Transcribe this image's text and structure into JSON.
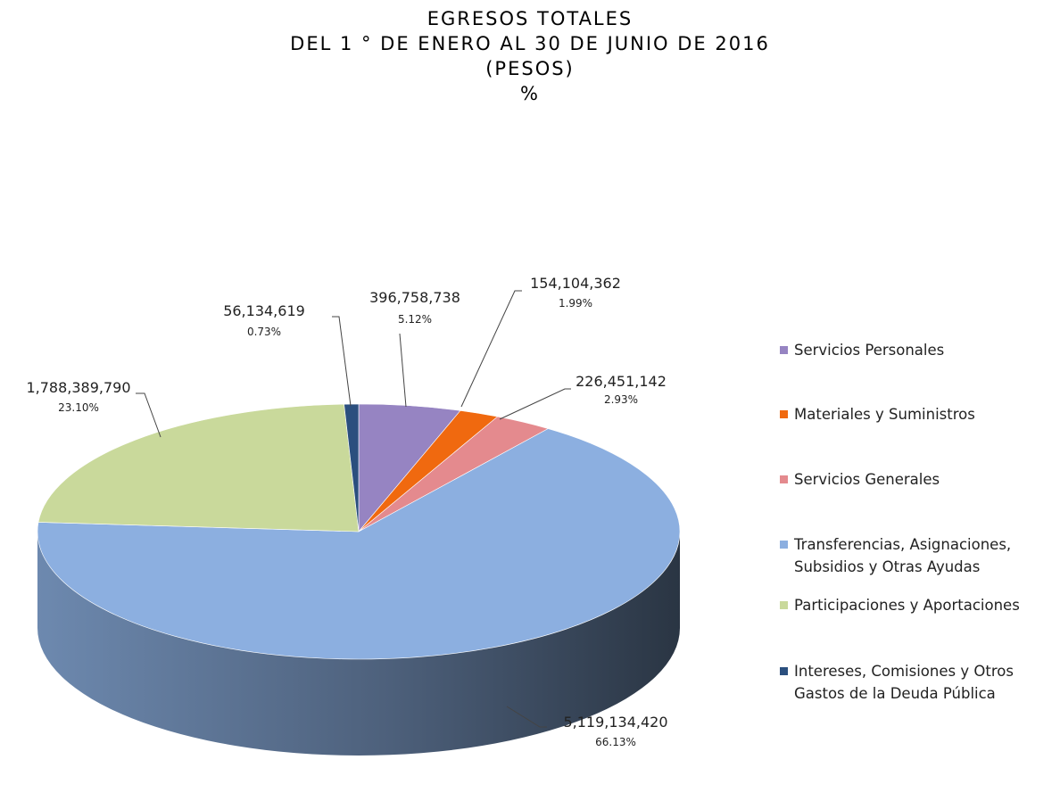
{
  "chart_data": {
    "type": "pie",
    "title": "EGRESOS TOTALES",
    "subtitle": [
      "DEL 1 ° DE ENERO AL 30 DE JUNIO DE 2016",
      "(PESOS)",
      "%"
    ],
    "categories": [
      "Servicios Personales",
      "Materiales y Suministros",
      "Servicios Generales",
      "Transferencias, Asignaciones, Subsidios y Otras Ayudas",
      "Participaciones y Aportaciones",
      "Intereses, Comisiones y Otros Gastos de la Deuda Pública"
    ],
    "values": [
      396758738,
      154104362,
      226451142,
      5119134420,
      1788389790,
      56134619
    ],
    "value_labels": [
      "396,758,738",
      "154,104,362",
      "226,451,142",
      "5,119,134,420",
      "1,788,389,790",
      "56,134,619"
    ],
    "percentages": [
      5.12,
      1.99,
      2.93,
      66.13,
      23.1,
      0.73
    ],
    "percentage_labels": [
      "5.12%",
      "1.99%",
      "2.93%",
      "66.13%",
      "23.10%",
      "0.73%"
    ],
    "colors": [
      "#9684c2",
      "#f0690f",
      "#e48a8e",
      "#8cafe0",
      "#c9d99b",
      "#2b4f7e"
    ],
    "legend": "right"
  }
}
